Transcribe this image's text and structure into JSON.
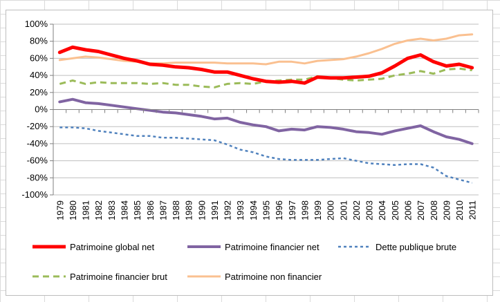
{
  "chart_data": {
    "type": "line",
    "title": "",
    "xlabel": "",
    "ylabel": "",
    "ylim": [
      -100,
      100
    ],
    "y_ticks": [
      "100%",
      "80%",
      "60%",
      "40%",
      "20%",
      "0%",
      "-20%",
      "-40%",
      "-60%",
      "-80%",
      "-100%"
    ],
    "grid": "horizontal",
    "legend_position": "bottom",
    "categories": [
      "1979",
      "1980",
      "1981",
      "1982",
      "1983",
      "1984",
      "1985",
      "1986",
      "1987",
      "1988",
      "1989",
      "1990",
      "1991",
      "1992",
      "1993",
      "1994",
      "1995",
      "1996",
      "1997",
      "1998",
      "1999",
      "2000",
      "2001",
      "2002",
      "2003",
      "2004",
      "2005",
      "2006",
      "2007",
      "2008",
      "2009",
      "2010",
      "2011"
    ],
    "series": [
      {
        "name": "Patrimoine  global net",
        "color": "#ff0000",
        "dash": "solid",
        "width": 5,
        "values": [
          67,
          73,
          70,
          68,
          64,
          60,
          57,
          53,
          52,
          50,
          49,
          47,
          44,
          44,
          40,
          36,
          33,
          32,
          33,
          31,
          38,
          37,
          37,
          38,
          39,
          43,
          51,
          60,
          64,
          56,
          51,
          53,
          49
        ]
      },
      {
        "name": "Patrimoine financier net",
        "color": "#8064a2",
        "dash": "solid",
        "width": 4,
        "values": [
          9,
          12,
          8,
          7,
          5,
          3,
          1,
          -1,
          -3,
          -4,
          -6,
          -8,
          -11,
          -10,
          -15,
          -18,
          -20,
          -25,
          -23,
          -24,
          -20,
          -21,
          -23,
          -26,
          -27,
          -29,
          -25,
          -22,
          -19,
          -26,
          -32,
          -35,
          -40
        ]
      },
      {
        "name": "Dette publique brute",
        "color": "#4f81bd",
        "dash": "short",
        "width": 2.5,
        "values": [
          -21,
          -21,
          -22,
          -25,
          -27,
          -29,
          -31,
          -31,
          -33,
          -33,
          -34,
          -35,
          -36,
          -41,
          -47,
          -50,
          -55,
          -58,
          -59,
          -59,
          -59,
          -58,
          -57,
          -60,
          -63,
          -64,
          -65,
          -64,
          -64,
          -68,
          -78,
          -82,
          -86
        ]
      },
      {
        "name": "Patrimoine financier brut",
        "color": "#9bbb59",
        "dash": "long",
        "width": 3,
        "values": [
          30,
          34,
          30,
          32,
          31,
          31,
          31,
          30,
          31,
          29,
          29,
          27,
          26,
          30,
          31,
          30,
          33,
          34,
          35,
          35,
          39,
          37,
          35,
          34,
          35,
          36,
          40,
          42,
          45,
          42,
          47,
          48,
          46
        ]
      },
      {
        "name": "Patrimoine non financier",
        "color": "#fac090",
        "dash": "solid",
        "width": 3,
        "values": [
          58,
          60,
          62,
          61,
          59,
          57,
          56,
          54,
          54,
          55,
          55,
          55,
          55,
          54,
          54,
          54,
          53,
          56,
          56,
          54,
          57,
          58,
          59,
          62,
          66,
          71,
          77,
          81,
          83,
          81,
          83,
          87,
          88
        ]
      }
    ]
  }
}
